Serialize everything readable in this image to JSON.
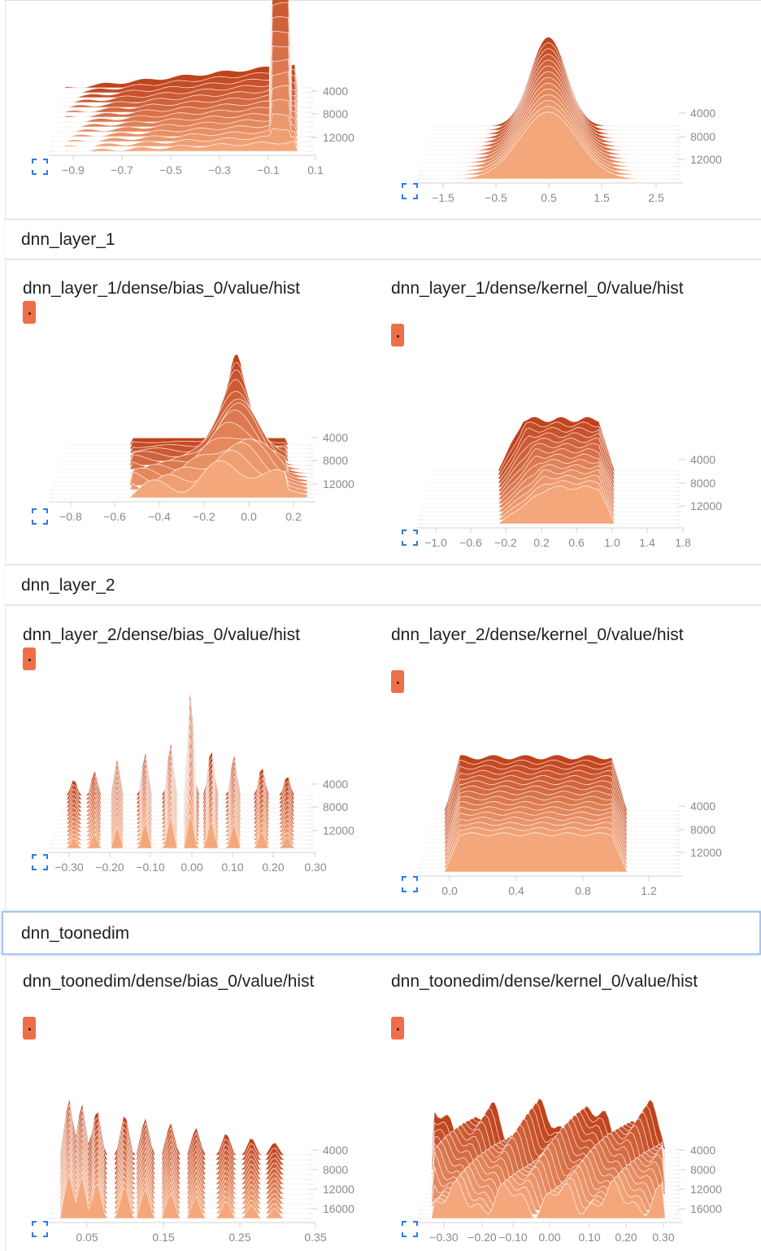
{
  "sections": [
    {
      "title": "dnn_layer_1"
    },
    {
      "title": "dnn_layer_2"
    },
    {
      "title": "dnn_toonedim"
    }
  ],
  "cards": {
    "l1_bias": {
      "title": "dnn_layer_1/dense/bias_0/value/hist"
    },
    "l1_kernel": {
      "title": "dnn_layer_1/dense/kernel_0/value/hist"
    },
    "l2_bias": {
      "title": "dnn_layer_2/dense/bias_0/value/hist"
    },
    "l2_kernel": {
      "title": "dnn_layer_2/dense/kernel_0/value/hist"
    },
    "t_bias": {
      "title": "dnn_toonedim/dense/bias_0/value/hist"
    },
    "t_kernel": {
      "title": "dnn_toonedim/dense/kernel_0/value/hist"
    }
  },
  "icons": {
    "expand": "expand-icon",
    "run_badge": "run-color-badge"
  },
  "colors": {
    "dark": "#c0431d",
    "light": "#f4a77b",
    "badge": "#ef6e4a",
    "axis_text": "#8a8a8a"
  },
  "chart_data": [
    {
      "id": "c0",
      "type": "histogram-offset",
      "x_ticks": [
        "−0.9",
        "−0.7",
        "−0.5",
        "−0.3",
        "−0.1",
        "0.1"
      ],
      "y_ticks": [
        "4000",
        "8000",
        "12000"
      ],
      "shape": "skew-right-spike"
    },
    {
      "id": "c1",
      "type": "histogram-offset",
      "x_ticks": [
        "−1.5",
        "−0.5",
        "0.5",
        "1.5",
        "2.5"
      ],
      "y_ticks": [
        "4000",
        "8000",
        "12000"
      ],
      "shape": "bell"
    },
    {
      "id": "c2",
      "type": "histogram-offset",
      "x_ticks": [
        "−0.8",
        "−0.6",
        "−0.4",
        "−0.2",
        "0.0",
        "0.2"
      ],
      "y_ticks": [
        "4000",
        "8000",
        "12000"
      ],
      "shape": "left-skew-spike"
    },
    {
      "id": "c3",
      "type": "histogram-offset",
      "x_ticks": [
        "−1.0",
        "−0.6",
        "−0.2",
        "0.2",
        "0.6",
        "1.0",
        "1.4",
        "1.8"
      ],
      "y_ticks": [
        "4000",
        "8000",
        "12000"
      ],
      "shape": "plateau"
    },
    {
      "id": "c4",
      "type": "histogram-offset",
      "x_ticks": [
        "−0.30",
        "−0.20",
        "−0.10",
        "0.00",
        "0.10",
        "0.20",
        "0.30"
      ],
      "y_ticks": [
        "4000",
        "8000",
        "12000"
      ],
      "shape": "spikes-triangle"
    },
    {
      "id": "c5",
      "type": "histogram-offset",
      "x_ticks": [
        "0.0",
        "0.4",
        "0.8",
        "1.2"
      ],
      "y_ticks": [
        "4000",
        "8000",
        "12000"
      ],
      "shape": "wide-plateau"
    },
    {
      "id": "c6",
      "type": "histogram-offset",
      "x_ticks": [
        "0.05",
        "0.15",
        "0.25",
        "0.35"
      ],
      "y_ticks": [
        "4000",
        "8000",
        "12000",
        "16000"
      ],
      "shape": "decreasing-spikes"
    },
    {
      "id": "c7",
      "type": "histogram-offset",
      "x_ticks": [
        "−0.30",
        "−0.20",
        "−0.10",
        "0.00",
        "0.10",
        "0.20",
        "0.30"
      ],
      "y_ticks": [
        "4000",
        "8000",
        "12000",
        "16000"
      ],
      "shape": "multi-peak"
    }
  ]
}
